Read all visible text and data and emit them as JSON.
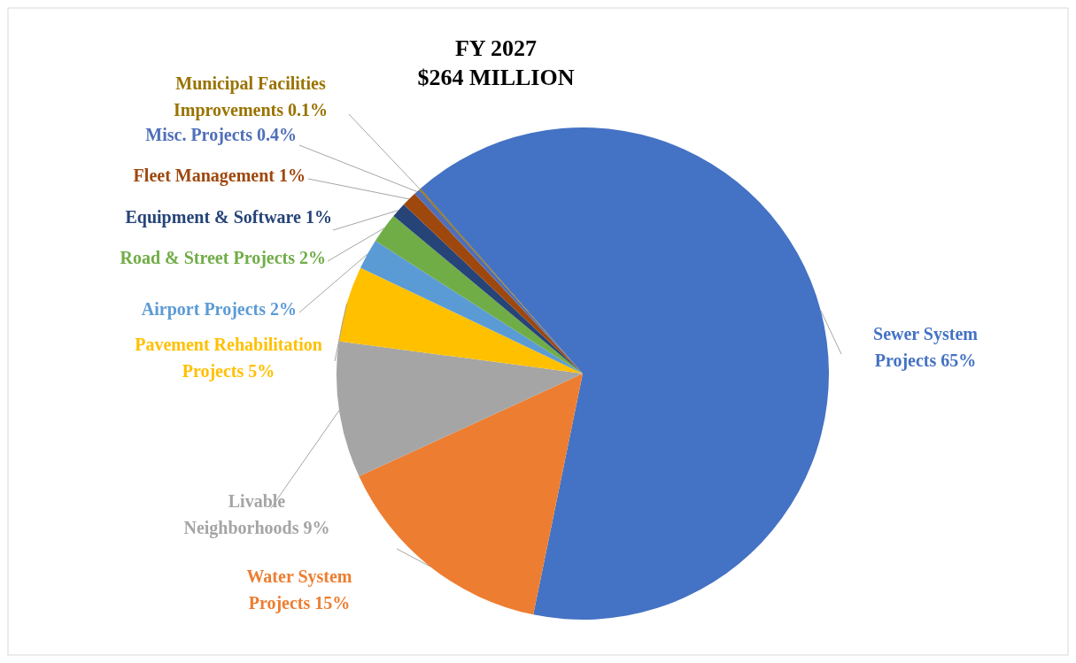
{
  "chart_data": {
    "type": "pie",
    "title": "FY 2027",
    "subtitle": "$264 MILLION",
    "categories": [
      "Sewer System Projects",
      "Water System Projects",
      "Livable Neighborhoods",
      "Pavement Rehabilitation Projects",
      "Airport Projects",
      "Road & Street Projects",
      "Equipment & Software",
      "Fleet Management",
      "Misc. Projects",
      "Municipal Facilities Improvements"
    ],
    "values": [
      65,
      15,
      9,
      5,
      2,
      2,
      1,
      1,
      0.4,
      0.1
    ],
    "colors": [
      "#4472c4",
      "#ed7d31",
      "#a5a5a5",
      "#ffc000",
      "#5b9bd5",
      "#70ad47",
      "#264478",
      "#9e480e",
      "#4f6fb8",
      "#997300"
    ],
    "value_labels": [
      "65%",
      "15%",
      "9%",
      "5%",
      "2%",
      "2%",
      "1%",
      "1%",
      "0.4%",
      "0.1%"
    ]
  }
}
